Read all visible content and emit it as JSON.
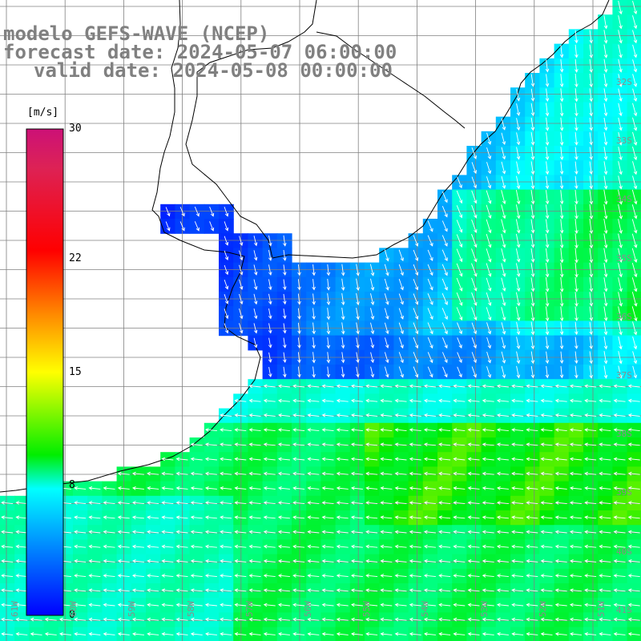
{
  "title": {
    "line1": "modelo GEFS-WAVE (NCEP)",
    "line2": "forecast date: 2024-05-07 06:00:00",
    "line3": "valid date: 2024-05-08 00:00:00"
  },
  "colorbar": {
    "unit": "[m/s]",
    "labels": [
      "30",
      "22",
      "15",
      "8",
      "0"
    ],
    "values": [
      30,
      22,
      15,
      8,
      0
    ],
    "colors": [
      "#cc1177",
      "#dd2266",
      "#ff0000",
      "#ff8800",
      "#ffff00",
      "#00ee00",
      "#00ffff",
      "#0088ff",
      "#0000ff"
    ]
  },
  "latitude_labels": [
    "32S",
    "33S",
    "34S",
    "35S",
    "36S",
    "37S",
    "38S",
    "39S",
    "40S",
    "41S"
  ],
  "longitude_labels": [
    "61W",
    "60W",
    "59W",
    "58W",
    "57W",
    "56W",
    "55W",
    "54W",
    "53W",
    "52W",
    "51W"
  ],
  "colors": {
    "land": "#ffffff",
    "coastline": "#000000",
    "grid": "#808080",
    "vectors": "#ffffff"
  }
}
